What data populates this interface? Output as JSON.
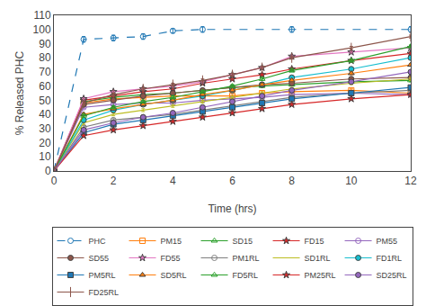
{
  "chart_data": {
    "type": "line",
    "xlabel": "Time (hrs)",
    "ylabel": "% Released PHC",
    "xlim": [
      0,
      12
    ],
    "ylim": [
      0,
      110
    ],
    "xticks": [
      0,
      2,
      4,
      6,
      8,
      10,
      12
    ],
    "yticks": [
      0,
      10,
      20,
      30,
      40,
      50,
      60,
      70,
      80,
      90,
      100,
      110
    ],
    "grid": false,
    "legend": "bottom",
    "series": [
      {
        "name": "PHC",
        "x": [
          0,
          1,
          2,
          3,
          4,
          5,
          8,
          12
        ],
        "values": [
          0,
          93,
          94,
          95,
          99,
          100,
          100,
          100
        ],
        "yerr": [
          0,
          2,
          2,
          2,
          1.5,
          2,
          2,
          2
        ],
        "marker": "circle-open",
        "line_style": "dashed"
      },
      {
        "name": "PM15",
        "x": [
          0,
          1,
          2,
          3,
          4,
          5,
          6,
          7,
          8,
          10,
          12
        ],
        "values": [
          0,
          48,
          51,
          52,
          53,
          53,
          53,
          55,
          56,
          57,
          55
        ],
        "yerr": [
          0,
          1,
          1,
          1,
          1,
          1,
          1,
          1,
          1,
          1,
          1
        ],
        "marker": "square-open",
        "line_style": "solid"
      },
      {
        "name": "SD15",
        "x": [
          0,
          1,
          2,
          3,
          4,
          5,
          6,
          7,
          8,
          10,
          12
        ],
        "values": [
          0,
          49,
          52,
          54,
          55,
          57,
          59,
          60,
          61,
          63,
          64
        ],
        "yerr": [
          0,
          1,
          1,
          1,
          1,
          1,
          1,
          1,
          1,
          1,
          1
        ],
        "marker": "triangle-up-open",
        "line_style": "solid"
      },
      {
        "name": "FD15",
        "x": [
          0,
          1,
          2,
          3,
          4,
          5,
          6,
          7,
          8,
          10,
          12
        ],
        "values": [
          0,
          50,
          53,
          56,
          58,
          62,
          65,
          68,
          72,
          78,
          83
        ],
        "yerr": [
          0,
          1,
          1,
          1,
          1,
          1,
          1,
          1,
          1,
          1,
          1
        ],
        "marker": "star",
        "line_style": "solid"
      },
      {
        "name": "PM55",
        "x": [
          0,
          1,
          2,
          3,
          4,
          5,
          6,
          7,
          8,
          10,
          12
        ],
        "values": [
          0,
          45,
          47,
          48,
          48,
          50,
          51,
          52,
          54,
          55,
          54
        ],
        "yerr": [
          0,
          1,
          1,
          1,
          1,
          1,
          1,
          1,
          1,
          1,
          1
        ],
        "marker": "circle-open",
        "line_style": "solid"
      },
      {
        "name": "SD55",
        "x": [
          0,
          1,
          2,
          3,
          4,
          5,
          6,
          7,
          8,
          10,
          12
        ],
        "values": [
          0,
          47,
          50,
          53,
          55,
          57,
          59,
          61,
          62,
          65,
          66
        ],
        "yerr": [
          0,
          1,
          1,
          1,
          1,
          1,
          1,
          1,
          1,
          1,
          1
        ],
        "marker": "circle",
        "line_style": "solid"
      },
      {
        "name": "FD55",
        "x": [
          0,
          1,
          2,
          3,
          4,
          5,
          6,
          7,
          8,
          10,
          12
        ],
        "values": [
          0,
          51,
          56,
          58,
          60,
          63,
          68,
          73,
          81,
          84,
          87
        ],
        "yerr": [
          0,
          1,
          1,
          1,
          1,
          1,
          1,
          1,
          1,
          1,
          1
        ],
        "marker": "star",
        "line_style": "solid"
      },
      {
        "name": "PM1RL",
        "x": [
          0,
          1,
          2,
          3,
          4,
          5,
          6,
          7,
          8,
          10,
          12
        ],
        "values": [
          0,
          31,
          36,
          38,
          40,
          43,
          46,
          49,
          52,
          55,
          57
        ],
        "yerr": [
          0,
          1,
          1,
          1,
          1,
          1,
          1,
          1,
          1,
          1,
          1
        ],
        "marker": "circle-open",
        "line_style": "solid"
      },
      {
        "name": "SD1RL",
        "x": [
          0,
          1,
          2,
          3,
          4,
          5,
          6,
          7,
          8,
          10,
          12
        ],
        "values": [
          0,
          34,
          40,
          43,
          46,
          49,
          52,
          55,
          58,
          62,
          65
        ],
        "yerr": [
          0,
          1,
          1,
          1,
          1,
          1,
          1,
          1,
          1,
          1,
          1
        ],
        "marker": "none",
        "line_style": "solid"
      },
      {
        "name": "FD1RL",
        "x": [
          0,
          1,
          2,
          3,
          4,
          5,
          6,
          7,
          8,
          10,
          12
        ],
        "values": [
          0,
          36,
          43,
          47,
          50,
          53,
          57,
          61,
          66,
          72,
          80
        ],
        "yerr": [
          0,
          1,
          1,
          1,
          1,
          1,
          1,
          1,
          1,
          1,
          1
        ],
        "marker": "circle",
        "line_style": "solid"
      },
      {
        "name": "PM5RL",
        "x": [
          0,
          1,
          2,
          3,
          4,
          5,
          6,
          7,
          8,
          10,
          12
        ],
        "values": [
          0,
          27,
          33,
          36,
          39,
          42,
          45,
          48,
          51,
          55,
          59
        ],
        "yerr": [
          0,
          1,
          1,
          1,
          1,
          1,
          1,
          1,
          1,
          1,
          1
        ],
        "marker": "square",
        "line_style": "solid"
      },
      {
        "name": "SD5RL",
        "x": [
          0,
          1,
          2,
          3,
          4,
          5,
          6,
          7,
          8,
          10,
          12
        ],
        "values": [
          0,
          40,
          44,
          47,
          50,
          54,
          57,
          61,
          64,
          69,
          75
        ],
        "yerr": [
          0,
          1,
          1,
          1,
          1,
          1,
          1,
          1,
          1,
          1,
          1
        ],
        "marker": "triangle-up",
        "line_style": "solid"
      },
      {
        "name": "FD5RL",
        "x": [
          0,
          1,
          2,
          3,
          4,
          5,
          6,
          7,
          8,
          10,
          12
        ],
        "values": [
          0,
          39,
          45,
          49,
          52,
          56,
          60,
          65,
          71,
          78,
          88
        ],
        "yerr": [
          0,
          1,
          1,
          1,
          1,
          1,
          1,
          1,
          1,
          1,
          1
        ],
        "marker": "triangle-up-open",
        "line_style": "solid"
      },
      {
        "name": "PM25RL",
        "x": [
          0,
          1,
          2,
          3,
          4,
          5,
          6,
          7,
          8,
          10,
          12
        ],
        "values": [
          0,
          25,
          29,
          32,
          35,
          38,
          41,
          44,
          47,
          51,
          54
        ],
        "yerr": [
          0,
          1,
          1,
          1,
          1,
          1,
          1,
          1,
          1,
          1,
          1
        ],
        "marker": "star",
        "line_style": "solid"
      },
      {
        "name": "SD25RL",
        "x": [
          0,
          1,
          2,
          3,
          4,
          5,
          6,
          7,
          8,
          10,
          12
        ],
        "values": [
          0,
          29,
          34,
          38,
          41,
          45,
          49,
          53,
          57,
          63,
          70
        ],
        "yerr": [
          0,
          1,
          1,
          1,
          1,
          1,
          1,
          1,
          1,
          1,
          1
        ],
        "marker": "circle",
        "line_style": "solid"
      },
      {
        "name": "FD25RL",
        "x": [
          0,
          1,
          2,
          3,
          4,
          5,
          6,
          7,
          8,
          10,
          12
        ],
        "values": [
          0,
          48,
          54,
          58,
          61,
          64,
          68,
          73,
          80,
          87,
          95
        ],
        "yerr": [
          0,
          1,
          1,
          1,
          1,
          1,
          1,
          1,
          1,
          1,
          1
        ],
        "marker": "line-ns-open",
        "line_style": "solid"
      }
    ]
  }
}
